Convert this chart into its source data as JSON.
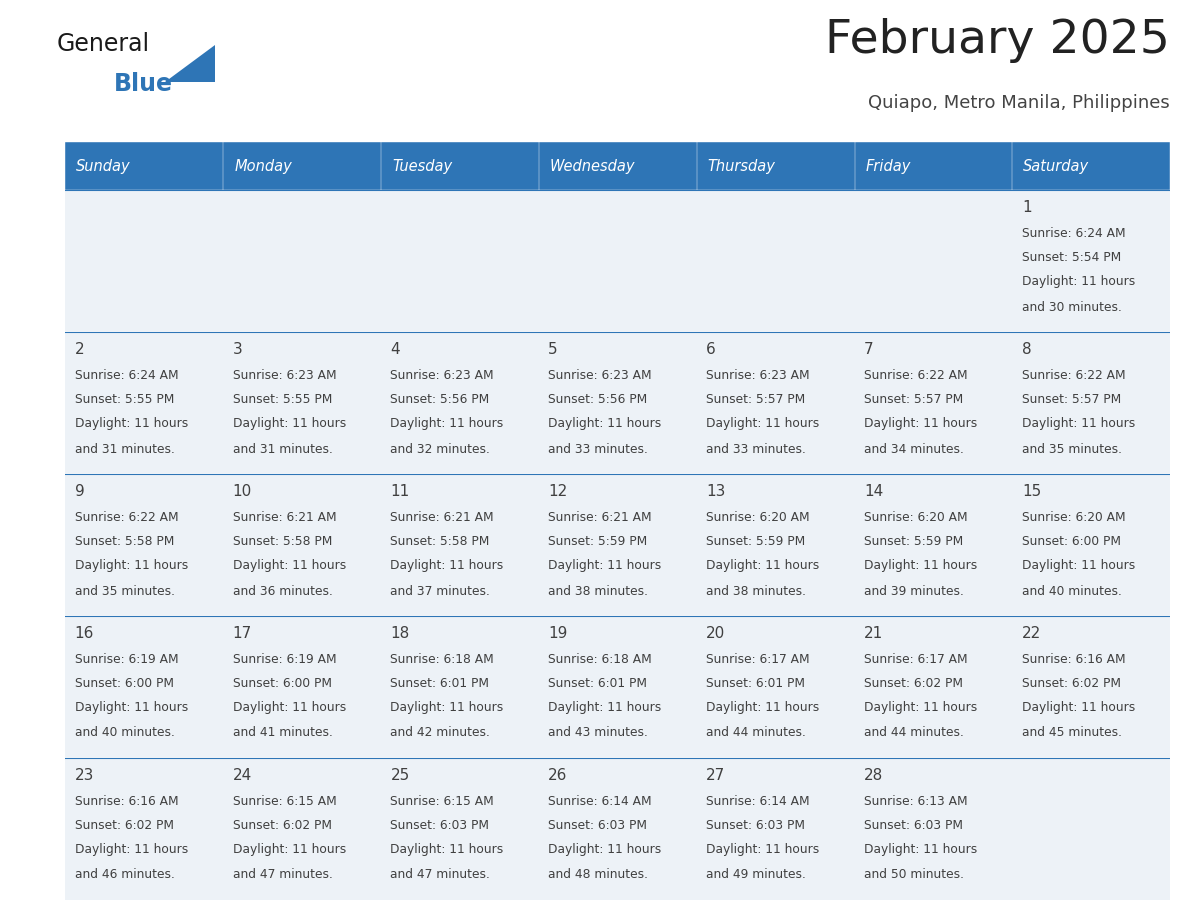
{
  "title": "February 2025",
  "subtitle": "Quiapo, Metro Manila, Philippines",
  "days_of_week": [
    "Sunday",
    "Monday",
    "Tuesday",
    "Wednesday",
    "Thursday",
    "Friday",
    "Saturday"
  ],
  "header_bg": "#2e75b6",
  "header_text": "#ffffff",
  "row_bg_light": "#edf2f7",
  "row_bg_white": "#ffffff",
  "divider_color": "#2e75b6",
  "text_color": "#404040",
  "title_color": "#222222",
  "subtitle_color": "#444444",
  "logo_general_color": "#1a1a1a",
  "logo_blue_color": "#2e75b6",
  "weeks": [
    [
      {
        "day": null,
        "sunrise": null,
        "sunset": null,
        "daylight_hours": null,
        "daylight_mins": null
      },
      {
        "day": null,
        "sunrise": null,
        "sunset": null,
        "daylight_hours": null,
        "daylight_mins": null
      },
      {
        "day": null,
        "sunrise": null,
        "sunset": null,
        "daylight_hours": null,
        "daylight_mins": null
      },
      {
        "day": null,
        "sunrise": null,
        "sunset": null,
        "daylight_hours": null,
        "daylight_mins": null
      },
      {
        "day": null,
        "sunrise": null,
        "sunset": null,
        "daylight_hours": null,
        "daylight_mins": null
      },
      {
        "day": null,
        "sunrise": null,
        "sunset": null,
        "daylight_hours": null,
        "daylight_mins": null
      },
      {
        "day": 1,
        "sunrise": "6:24 AM",
        "sunset": "5:54 PM",
        "daylight_hours": 11,
        "daylight_mins": 30
      }
    ],
    [
      {
        "day": 2,
        "sunrise": "6:24 AM",
        "sunset": "5:55 PM",
        "daylight_hours": 11,
        "daylight_mins": 31
      },
      {
        "day": 3,
        "sunrise": "6:23 AM",
        "sunset": "5:55 PM",
        "daylight_hours": 11,
        "daylight_mins": 31
      },
      {
        "day": 4,
        "sunrise": "6:23 AM",
        "sunset": "5:56 PM",
        "daylight_hours": 11,
        "daylight_mins": 32
      },
      {
        "day": 5,
        "sunrise": "6:23 AM",
        "sunset": "5:56 PM",
        "daylight_hours": 11,
        "daylight_mins": 33
      },
      {
        "day": 6,
        "sunrise": "6:23 AM",
        "sunset": "5:57 PM",
        "daylight_hours": 11,
        "daylight_mins": 33
      },
      {
        "day": 7,
        "sunrise": "6:22 AM",
        "sunset": "5:57 PM",
        "daylight_hours": 11,
        "daylight_mins": 34
      },
      {
        "day": 8,
        "sunrise": "6:22 AM",
        "sunset": "5:57 PM",
        "daylight_hours": 11,
        "daylight_mins": 35
      }
    ],
    [
      {
        "day": 9,
        "sunrise": "6:22 AM",
        "sunset": "5:58 PM",
        "daylight_hours": 11,
        "daylight_mins": 35
      },
      {
        "day": 10,
        "sunrise": "6:21 AM",
        "sunset": "5:58 PM",
        "daylight_hours": 11,
        "daylight_mins": 36
      },
      {
        "day": 11,
        "sunrise": "6:21 AM",
        "sunset": "5:58 PM",
        "daylight_hours": 11,
        "daylight_mins": 37
      },
      {
        "day": 12,
        "sunrise": "6:21 AM",
        "sunset": "5:59 PM",
        "daylight_hours": 11,
        "daylight_mins": 38
      },
      {
        "day": 13,
        "sunrise": "6:20 AM",
        "sunset": "5:59 PM",
        "daylight_hours": 11,
        "daylight_mins": 38
      },
      {
        "day": 14,
        "sunrise": "6:20 AM",
        "sunset": "5:59 PM",
        "daylight_hours": 11,
        "daylight_mins": 39
      },
      {
        "day": 15,
        "sunrise": "6:20 AM",
        "sunset": "6:00 PM",
        "daylight_hours": 11,
        "daylight_mins": 40
      }
    ],
    [
      {
        "day": 16,
        "sunrise": "6:19 AM",
        "sunset": "6:00 PM",
        "daylight_hours": 11,
        "daylight_mins": 40
      },
      {
        "day": 17,
        "sunrise": "6:19 AM",
        "sunset": "6:00 PM",
        "daylight_hours": 11,
        "daylight_mins": 41
      },
      {
        "day": 18,
        "sunrise": "6:18 AM",
        "sunset": "6:01 PM",
        "daylight_hours": 11,
        "daylight_mins": 42
      },
      {
        "day": 19,
        "sunrise": "6:18 AM",
        "sunset": "6:01 PM",
        "daylight_hours": 11,
        "daylight_mins": 43
      },
      {
        "day": 20,
        "sunrise": "6:17 AM",
        "sunset": "6:01 PM",
        "daylight_hours": 11,
        "daylight_mins": 44
      },
      {
        "day": 21,
        "sunrise": "6:17 AM",
        "sunset": "6:02 PM",
        "daylight_hours": 11,
        "daylight_mins": 44
      },
      {
        "day": 22,
        "sunrise": "6:16 AM",
        "sunset": "6:02 PM",
        "daylight_hours": 11,
        "daylight_mins": 45
      }
    ],
    [
      {
        "day": 23,
        "sunrise": "6:16 AM",
        "sunset": "6:02 PM",
        "daylight_hours": 11,
        "daylight_mins": 46
      },
      {
        "day": 24,
        "sunrise": "6:15 AM",
        "sunset": "6:02 PM",
        "daylight_hours": 11,
        "daylight_mins": 47
      },
      {
        "day": 25,
        "sunrise": "6:15 AM",
        "sunset": "6:03 PM",
        "daylight_hours": 11,
        "daylight_mins": 47
      },
      {
        "day": 26,
        "sunrise": "6:14 AM",
        "sunset": "6:03 PM",
        "daylight_hours": 11,
        "daylight_mins": 48
      },
      {
        "day": 27,
        "sunrise": "6:14 AM",
        "sunset": "6:03 PM",
        "daylight_hours": 11,
        "daylight_mins": 49
      },
      {
        "day": 28,
        "sunrise": "6:13 AM",
        "sunset": "6:03 PM",
        "daylight_hours": 11,
        "daylight_mins": 50
      },
      {
        "day": null,
        "sunrise": null,
        "sunset": null,
        "daylight_hours": null,
        "daylight_mins": null
      }
    ]
  ]
}
